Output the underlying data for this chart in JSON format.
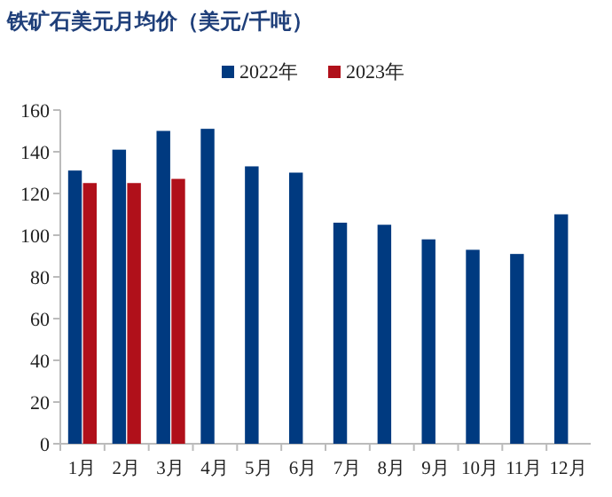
{
  "chart_data": {
    "type": "bar",
    "title": "铁矿石美元月均价（美元/千吨）",
    "categories": [
      "1月",
      "2月",
      "3月",
      "4月",
      "5月",
      "6月",
      "7月",
      "8月",
      "9月",
      "10月",
      "11月",
      "12月"
    ],
    "series": [
      {
        "name": "2022年",
        "color": "#003a80",
        "values": [
          131,
          141,
          150,
          151,
          133,
          130,
          106,
          105,
          98,
          93,
          91,
          110
        ]
      },
      {
        "name": "2023年",
        "color": "#b0101a",
        "values": [
          125,
          125,
          127,
          null,
          null,
          null,
          null,
          null,
          null,
          null,
          null,
          null
        ]
      }
    ],
    "ylim": [
      0,
      160
    ],
    "yticks": [
      0,
      20,
      40,
      60,
      80,
      100,
      120,
      140,
      160
    ],
    "legend": "top"
  }
}
